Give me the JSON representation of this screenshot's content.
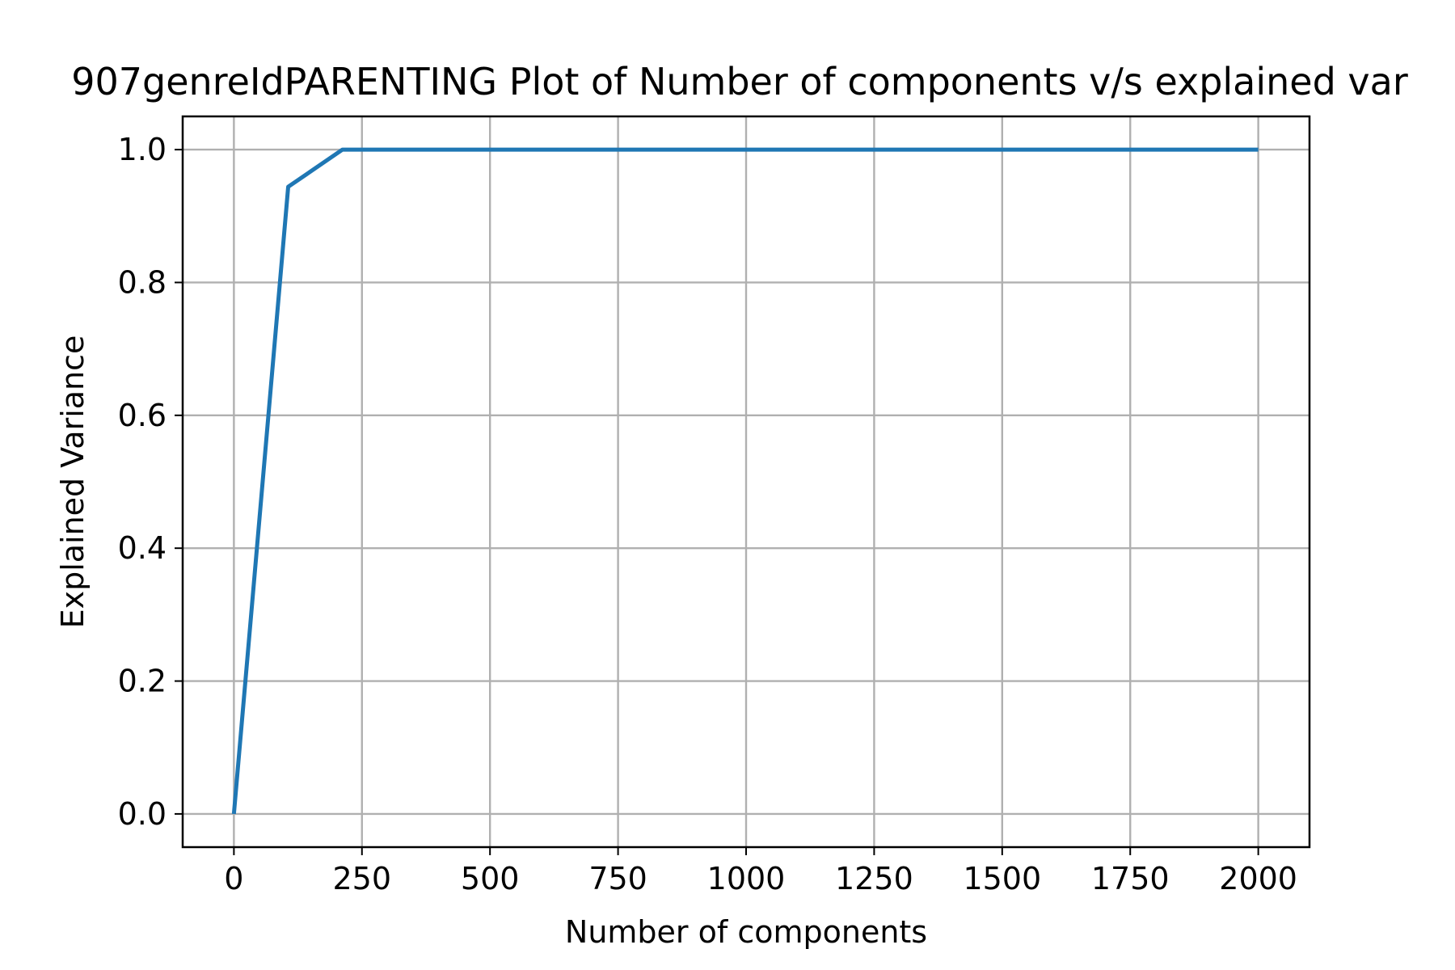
{
  "chart_data": {
    "type": "line",
    "title": "907genreIdPARENTING Plot of Number of components v/s explained var",
    "xlabel": "Number of components",
    "ylabel": "Explained Variance",
    "xlim": [
      -100,
      2100
    ],
    "ylim": [
      -0.05,
      1.05
    ],
    "xticks": [
      0,
      250,
      500,
      750,
      1000,
      1250,
      1500,
      1750,
      2000
    ],
    "xtick_labels": [
      "0",
      "250",
      "500",
      "750",
      "1000",
      "1250",
      "1500",
      "1750",
      "2000"
    ],
    "yticks": [
      0.0,
      0.2,
      0.4,
      0.6,
      0.8,
      1.0
    ],
    "ytick_labels": [
      "0.0",
      "0.2",
      "0.4",
      "0.6",
      "0.8",
      "1.0"
    ],
    "grid": true,
    "series": [
      {
        "color": "#1f77b4",
        "x": [
          0,
          106,
          212,
          2000
        ],
        "y": [
          0.0,
          0.944,
          1.0,
          1.0
        ]
      }
    ]
  }
}
